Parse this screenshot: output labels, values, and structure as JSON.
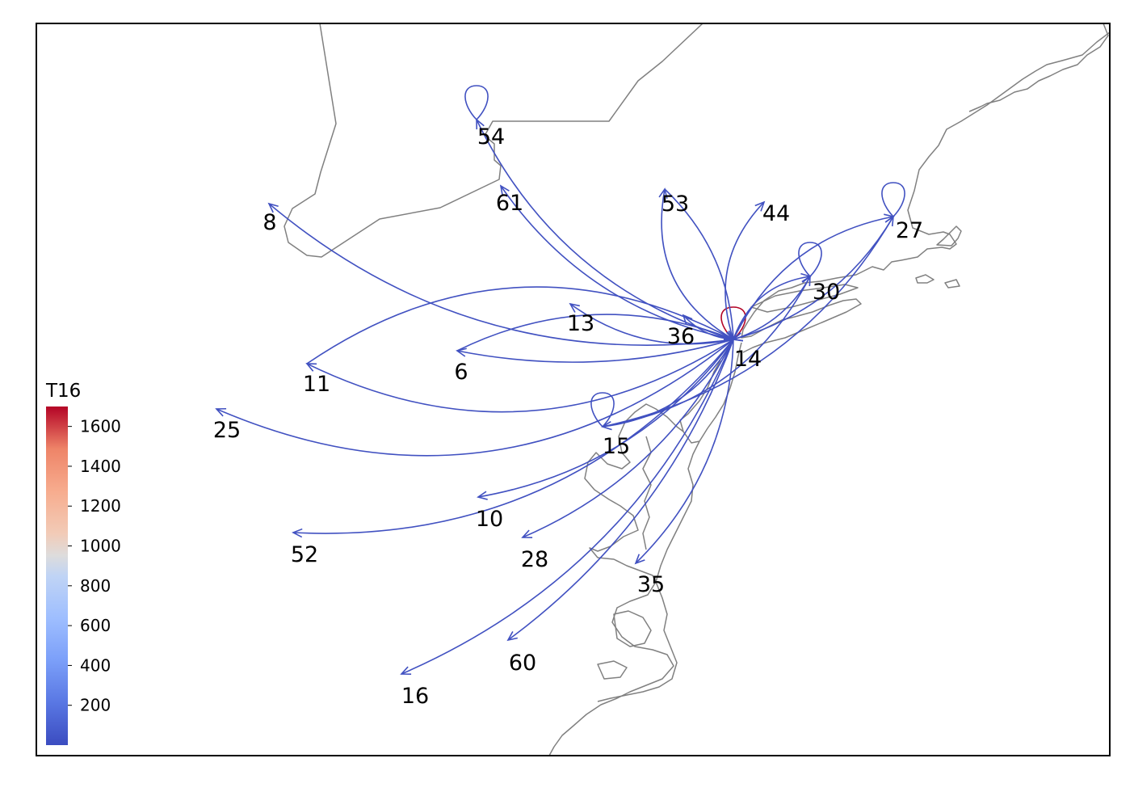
{
  "map": {
    "edge_color_low": "#3b4cc0",
    "edge_color_high": "#b40426",
    "coast_color": "#808080"
  },
  "colorbar": {
    "title": "T16",
    "min": 0,
    "max": 1700,
    "ticks": [
      "200",
      "400",
      "600",
      "800",
      "1000",
      "1200",
      "1400",
      "1600"
    ],
    "tick_values": [
      200,
      400,
      600,
      800,
      1000,
      1200,
      1400,
      1600
    ],
    "colormap": "coolwarm"
  },
  "nodes": [
    {
      "id": "6",
      "label": "6"
    },
    {
      "id": "8",
      "label": "8"
    },
    {
      "id": "10",
      "label": "10"
    },
    {
      "id": "11",
      "label": "11"
    },
    {
      "id": "13",
      "label": "13"
    },
    {
      "id": "14",
      "label": "14"
    },
    {
      "id": "15",
      "label": "15"
    },
    {
      "id": "16",
      "label": "16"
    },
    {
      "id": "25",
      "label": "25"
    },
    {
      "id": "27",
      "label": "27"
    },
    {
      "id": "28",
      "label": "28"
    },
    {
      "id": "30",
      "label": "30"
    },
    {
      "id": "35",
      "label": "35"
    },
    {
      "id": "36",
      "label": "36"
    },
    {
      "id": "44",
      "label": "44"
    },
    {
      "id": "52",
      "label": "52"
    },
    {
      "id": "53",
      "label": "53"
    },
    {
      "id": "54",
      "label": "54"
    },
    {
      "id": "60",
      "label": "60"
    },
    {
      "id": "61",
      "label": "61"
    }
  ],
  "edges": [
    {
      "from": "14",
      "to": "14",
      "value": 1700,
      "self_loop": true
    },
    {
      "from": "54",
      "to": "54",
      "value": 30,
      "self_loop": true
    },
    {
      "from": "27",
      "to": "27",
      "value": 30,
      "self_loop": true
    },
    {
      "from": "30",
      "to": "30",
      "value": 30,
      "self_loop": true
    },
    {
      "from": "15",
      "to": "15",
      "value": 30,
      "self_loop": true
    },
    {
      "from": "14",
      "to": "54",
      "value": 30
    },
    {
      "from": "14",
      "to": "61",
      "value": 30
    },
    {
      "from": "14",
      "to": "8",
      "value": 30
    },
    {
      "from": "14",
      "to": "53",
      "value": 30
    },
    {
      "from": "14",
      "to": "44",
      "value": 30
    },
    {
      "from": "14",
      "to": "27",
      "value": 30
    },
    {
      "from": "14",
      "to": "30",
      "value": 30
    },
    {
      "from": "14",
      "to": "13",
      "value": 30
    },
    {
      "from": "14",
      "to": "36",
      "value": 30
    },
    {
      "from": "14",
      "to": "6",
      "value": 30
    },
    {
      "from": "14",
      "to": "11",
      "value": 30
    },
    {
      "from": "14",
      "to": "25",
      "value": 30
    },
    {
      "from": "14",
      "to": "52",
      "value": 30
    },
    {
      "from": "14",
      "to": "10",
      "value": 30
    },
    {
      "from": "14",
      "to": "16",
      "value": 30
    },
    {
      "from": "14",
      "to": "28",
      "value": 30
    },
    {
      "from": "14",
      "to": "60",
      "value": 30
    },
    {
      "from": "14",
      "to": "35",
      "value": 30
    },
    {
      "from": "14",
      "to": "15",
      "value": 30
    },
    {
      "from": "6",
      "to": "14",
      "value": 30
    },
    {
      "from": "11",
      "to": "14",
      "value": 30
    },
    {
      "from": "15",
      "to": "27",
      "value": 30
    },
    {
      "from": "15",
      "to": "30",
      "value": 30
    },
    {
      "from": "53",
      "to": "14",
      "value": 30
    },
    {
      "from": "27",
      "to": "14",
      "value": 30
    },
    {
      "from": "30",
      "to": "14",
      "value": 30
    }
  ]
}
